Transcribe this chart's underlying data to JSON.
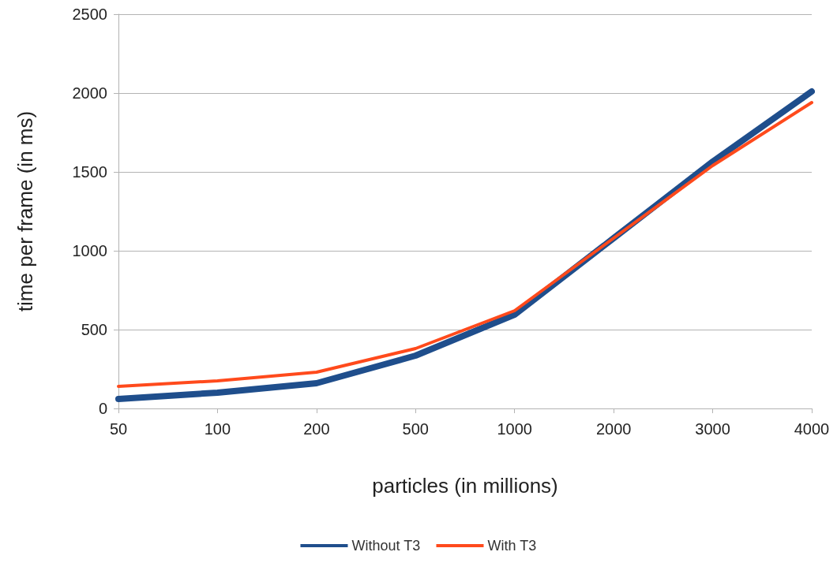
{
  "chart_data": {
    "type": "line",
    "xlabel": "particles (in millions)",
    "ylabel": "time per frame (in ms)",
    "categories": [
      "50",
      "100",
      "200",
      "500",
      "1000",
      "2000",
      "3000",
      "4000"
    ],
    "series": [
      {
        "name": "Without T3",
        "color": "#1f4e8c",
        "values": [
          60,
          100,
          160,
          335,
          595,
          1080,
          1565,
          2010
        ]
      },
      {
        "name": "With T3",
        "color": "#ff4a1c",
        "values": [
          140,
          175,
          230,
          380,
          620,
          1080,
          1540,
          1940
        ]
      }
    ],
    "ylim": [
      0,
      2500
    ],
    "yticks": [
      0,
      500,
      1000,
      1500,
      2000,
      2500
    ],
    "grid": "y",
    "legend": "bottom",
    "marker": "none",
    "line_style": "solid"
  }
}
